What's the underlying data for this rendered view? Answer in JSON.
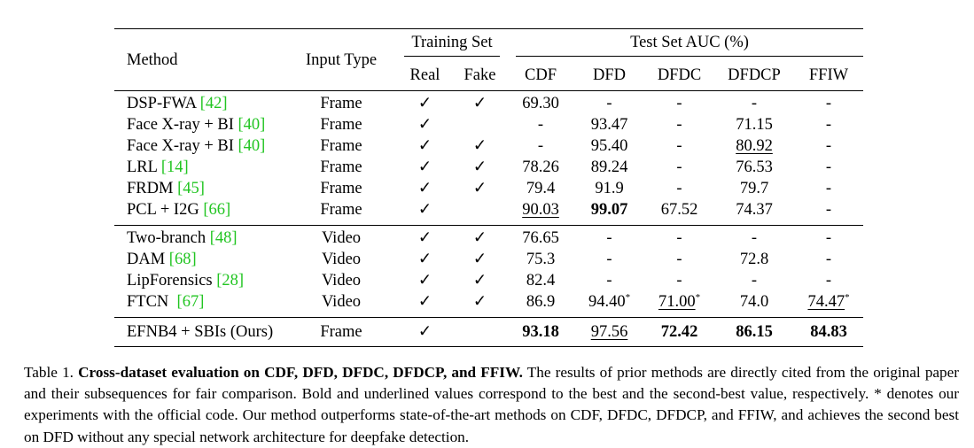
{
  "table": {
    "headers": {
      "method": "Method",
      "input_type": "Input Type",
      "training_set": "Training Set",
      "test_set": "Test Set AUC (%)",
      "real": "Real",
      "fake": "Fake",
      "cdf": "CDF",
      "dfd": "DFD",
      "dfdc": "DFDC",
      "dfdcp": "DFDCP",
      "ffiw": "FFIW"
    },
    "check": "✓",
    "frame_rows": [
      {
        "name": "DSP-FWA ",
        "cite": "[42]",
        "input": "Frame",
        "real": "✓",
        "fake": "✓",
        "cdf": "69.30",
        "dfd": "-",
        "dfdc": "-",
        "dfdcp": "-",
        "ffiw": "-"
      },
      {
        "name": "Face X-ray + BI ",
        "cite": "[40]",
        "input": "Frame",
        "real": "✓",
        "fake": "",
        "cdf": "-",
        "dfd": "93.47",
        "dfdc": "-",
        "dfdcp": "71.15",
        "ffiw": "-"
      },
      {
        "name": "Face X-ray + BI ",
        "cite": "[40]",
        "input": "Frame",
        "real": "✓",
        "fake": "✓",
        "cdf": "-",
        "dfd": "95.40",
        "dfdc": "-",
        "dfdcp": "80.92",
        "ffiw": "-"
      },
      {
        "name": "LRL ",
        "cite": "[14]",
        "input": "Frame",
        "real": "✓",
        "fake": "✓",
        "cdf": "78.26",
        "dfd": "89.24",
        "dfdc": "-",
        "dfdcp": "76.53",
        "ffiw": "-"
      },
      {
        "name": "FRDM ",
        "cite": "[45]",
        "input": "Frame",
        "real": "✓",
        "fake": "✓",
        "cdf": "79.4",
        "dfd": "91.9",
        "dfdc": "-",
        "dfdcp": "79.7",
        "ffiw": "-"
      },
      {
        "name": "PCL + I2G ",
        "cite": "[66]",
        "input": "Frame",
        "real": "✓",
        "fake": "",
        "cdf": "90.03",
        "dfd": "99.07",
        "dfdc": "67.52",
        "dfdcp": "74.37",
        "ffiw": "-"
      }
    ],
    "video_rows": [
      {
        "name": "Two-branch ",
        "cite": "[48]",
        "input": "Video",
        "real": "✓",
        "fake": "✓",
        "cdf": "76.65",
        "dfd": "-",
        "dfdc": "-",
        "dfdcp": "-",
        "ffiw": "-"
      },
      {
        "name": "DAM ",
        "cite": "[68]",
        "input": "Video",
        "real": "✓",
        "fake": "✓",
        "cdf": "75.3",
        "dfd": "-",
        "dfdc": "-",
        "dfdcp": "72.8",
        "ffiw": "-"
      },
      {
        "name": "LipForensics ",
        "cite": "[28]",
        "input": "Video",
        "real": "✓",
        "fake": "✓",
        "cdf": "82.4",
        "dfd": "-",
        "dfdc": "-",
        "dfdcp": "-",
        "ffiw": "-"
      },
      {
        "name": "FTCN  ",
        "cite": "[67]",
        "input": "Video",
        "real": "✓",
        "fake": "✓",
        "cdf": "86.9",
        "dfd": "94.40",
        "dfd_sup": "*",
        "dfdc": "71.00",
        "dfdc_sup": "*",
        "dfdcp": "74.0",
        "ffiw": "74.47",
        "ffiw_sup": "*"
      }
    ],
    "ours": {
      "name": "EFNB4 + SBIs (Ours)",
      "input": "Frame",
      "real": "✓",
      "fake": "",
      "cdf": "93.18",
      "dfd": "97.56",
      "dfdc": "72.42",
      "dfdcp": "86.15",
      "ffiw": "84.83"
    }
  },
  "caption": {
    "label": "Table 1. ",
    "title": "Cross-dataset evaluation on CDF, DFD, DFDC, DFDCP, and FFIW.",
    "body": " The results of prior methods are directly cited from the original paper and their subsequences for fair comparison. Bold and underlined values correspond to the best and the second-best value, respectively. * denotes our experiments with the official code. Our method outperforms state-of-the-art methods on CDF, DFDC, DFDCP, and FFIW, and achieves the second best on DFD without any special network architecture for deepfake detection."
  },
  "colors": {
    "citation": "#22c522",
    "text": "#000000"
  }
}
